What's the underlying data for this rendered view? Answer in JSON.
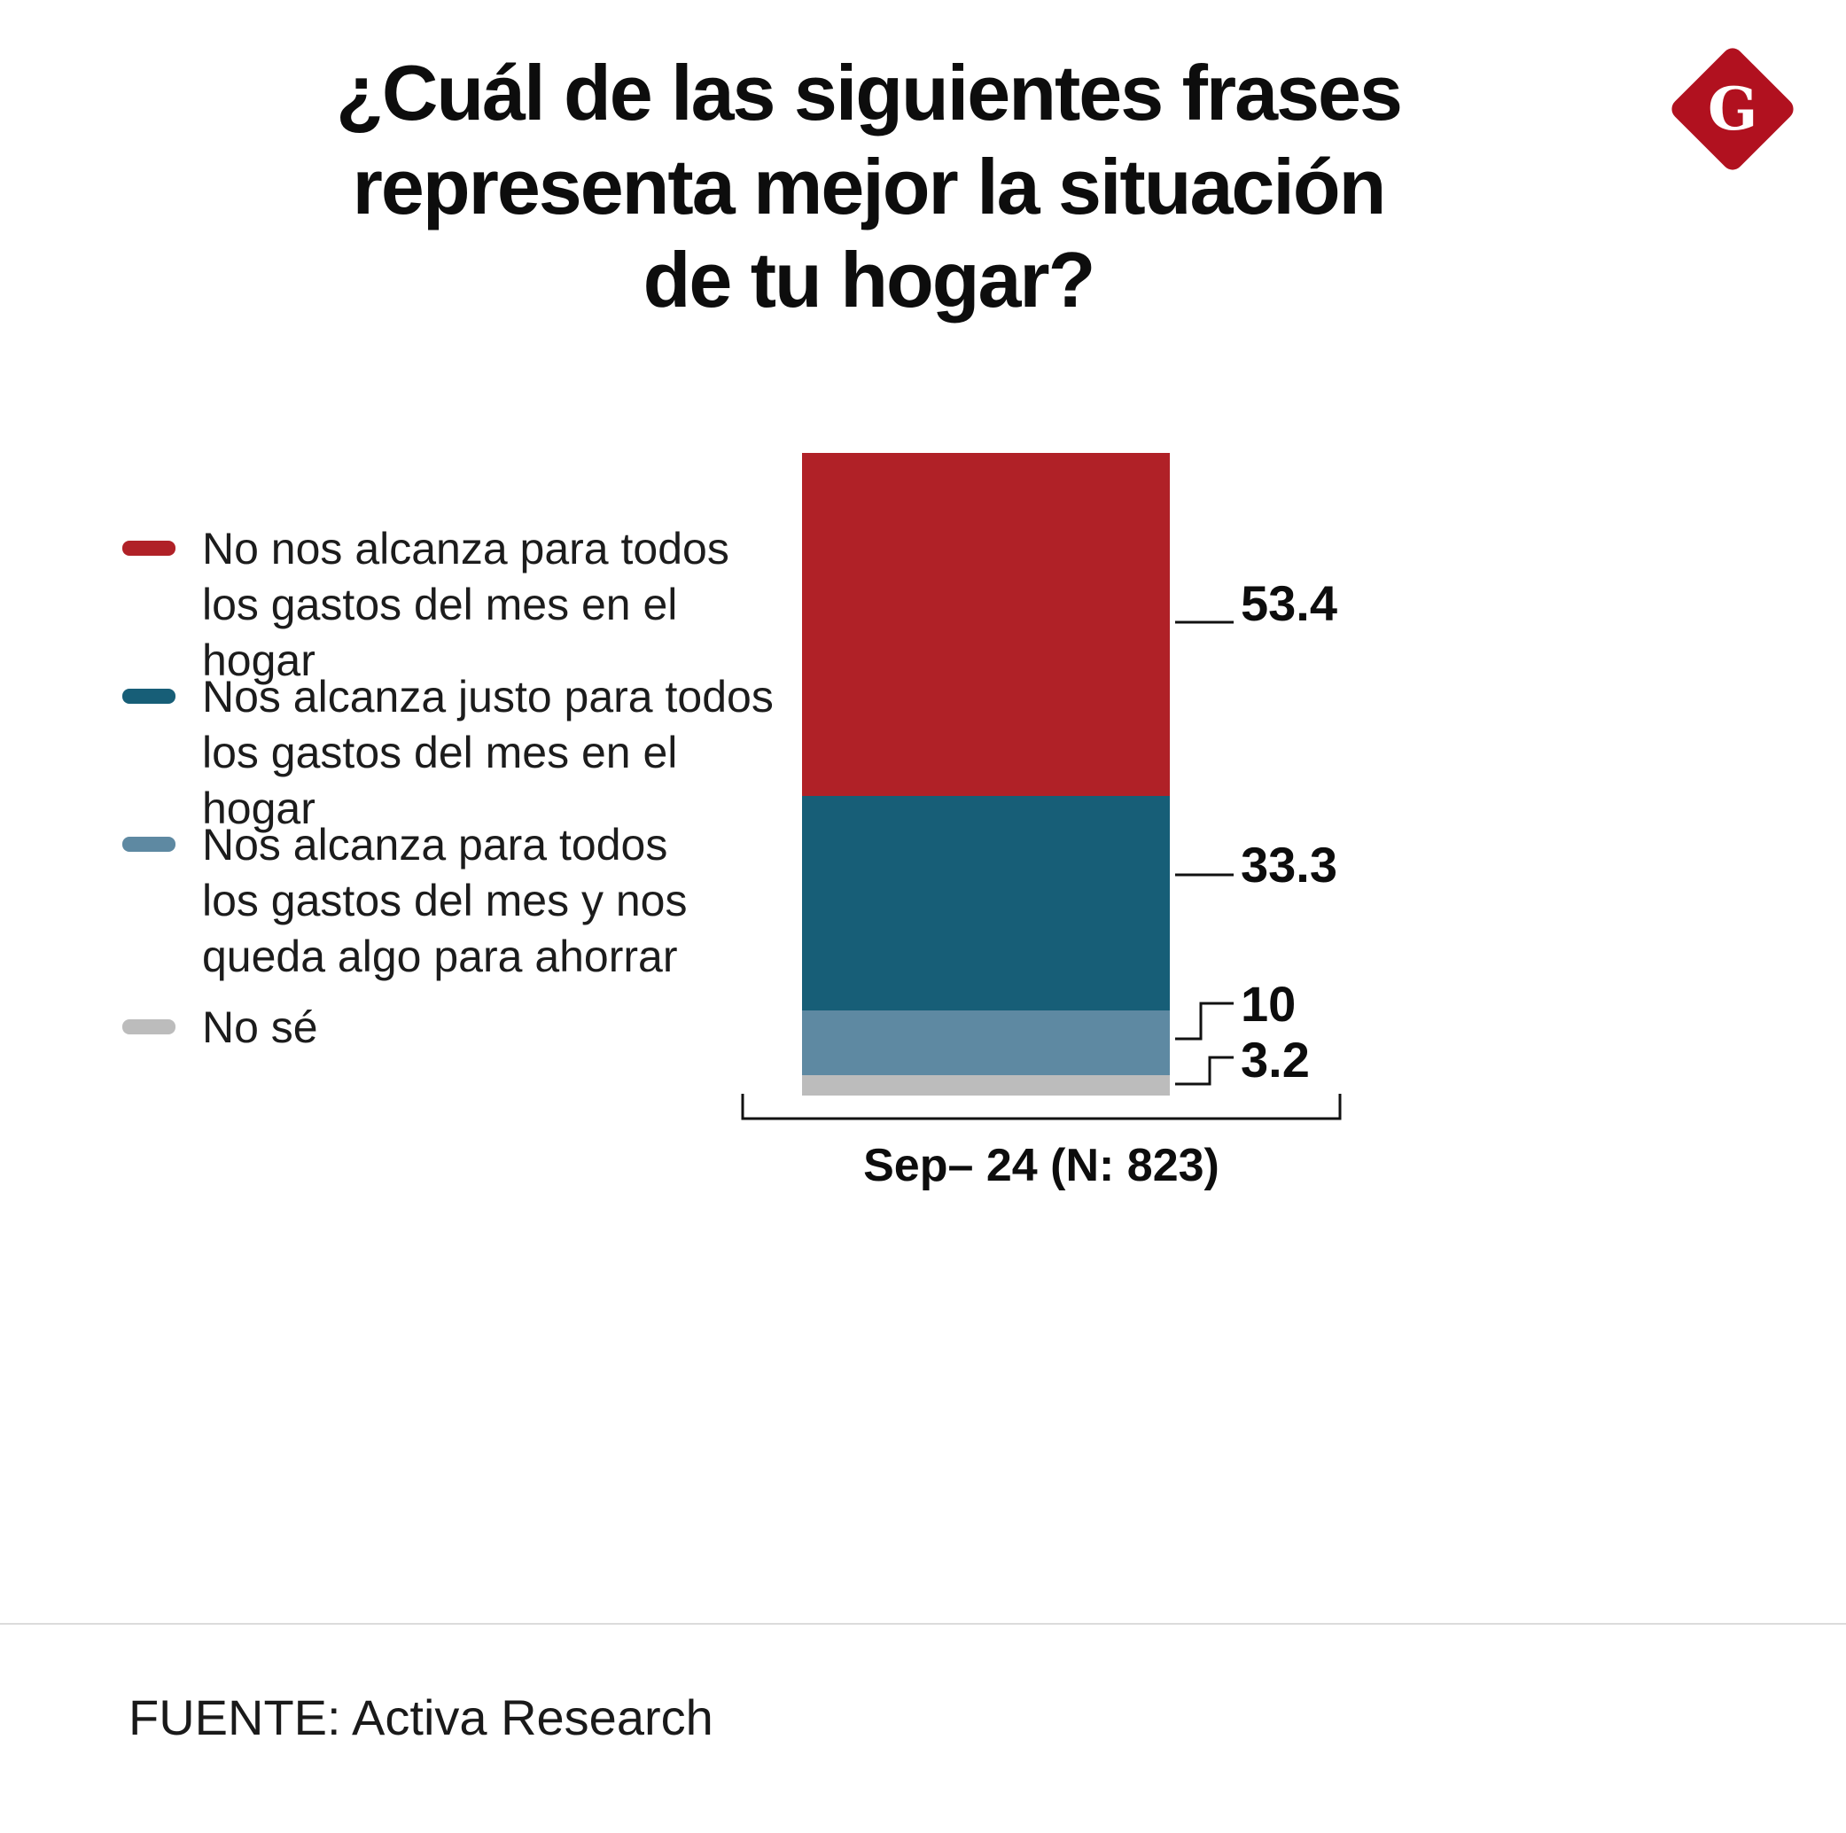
{
  "title": "¿Cuál de las siguientes frases\nrepresenta mejor la situación\nde tu hogar?",
  "logo": {
    "letter": "G",
    "color": "#b1111f"
  },
  "source": "FUENTE: Activa Research",
  "chart_data": {
    "type": "bar",
    "stacked": true,
    "categories": [
      "Sep– 24 (N: 823)"
    ],
    "ylim": [
      0,
      100
    ],
    "grid": false,
    "legend_position": "left",
    "title": "¿Cuál de las siguientes frases representa mejor la situación de tu hogar?",
    "xlabel": "",
    "ylabel": "",
    "series": [
      {
        "name": "No nos alcanza para todos los gastos del mes en el hogar",
        "legend_label": "No nos alcanza para todos\nlos gastos del mes en el hogar",
        "values": [
          53.4
        ],
        "value_label": "53.4",
        "color": "#b02127"
      },
      {
        "name": "Nos alcanza justo para todos los gastos del mes en el hogar",
        "legend_label": "Nos alcanza justo para todos\nlos gastos del mes en el hogar",
        "values": [
          33.3
        ],
        "value_label": "33.3",
        "color": "#175e77"
      },
      {
        "name": "Nos alcanza para todos los gastos del mes y nos queda algo para ahorrar",
        "legend_label": "Nos alcanza para todos\nlos gastos del mes y nos\nqueda algo para ahorrar",
        "values": [
          10
        ],
        "value_label": "10",
        "color": "#5e89a2"
      },
      {
        "name": "No sé",
        "legend_label": "No sé",
        "values": [
          3.2
        ],
        "value_label": "3.2",
        "color": "#bcbcbc"
      }
    ]
  }
}
